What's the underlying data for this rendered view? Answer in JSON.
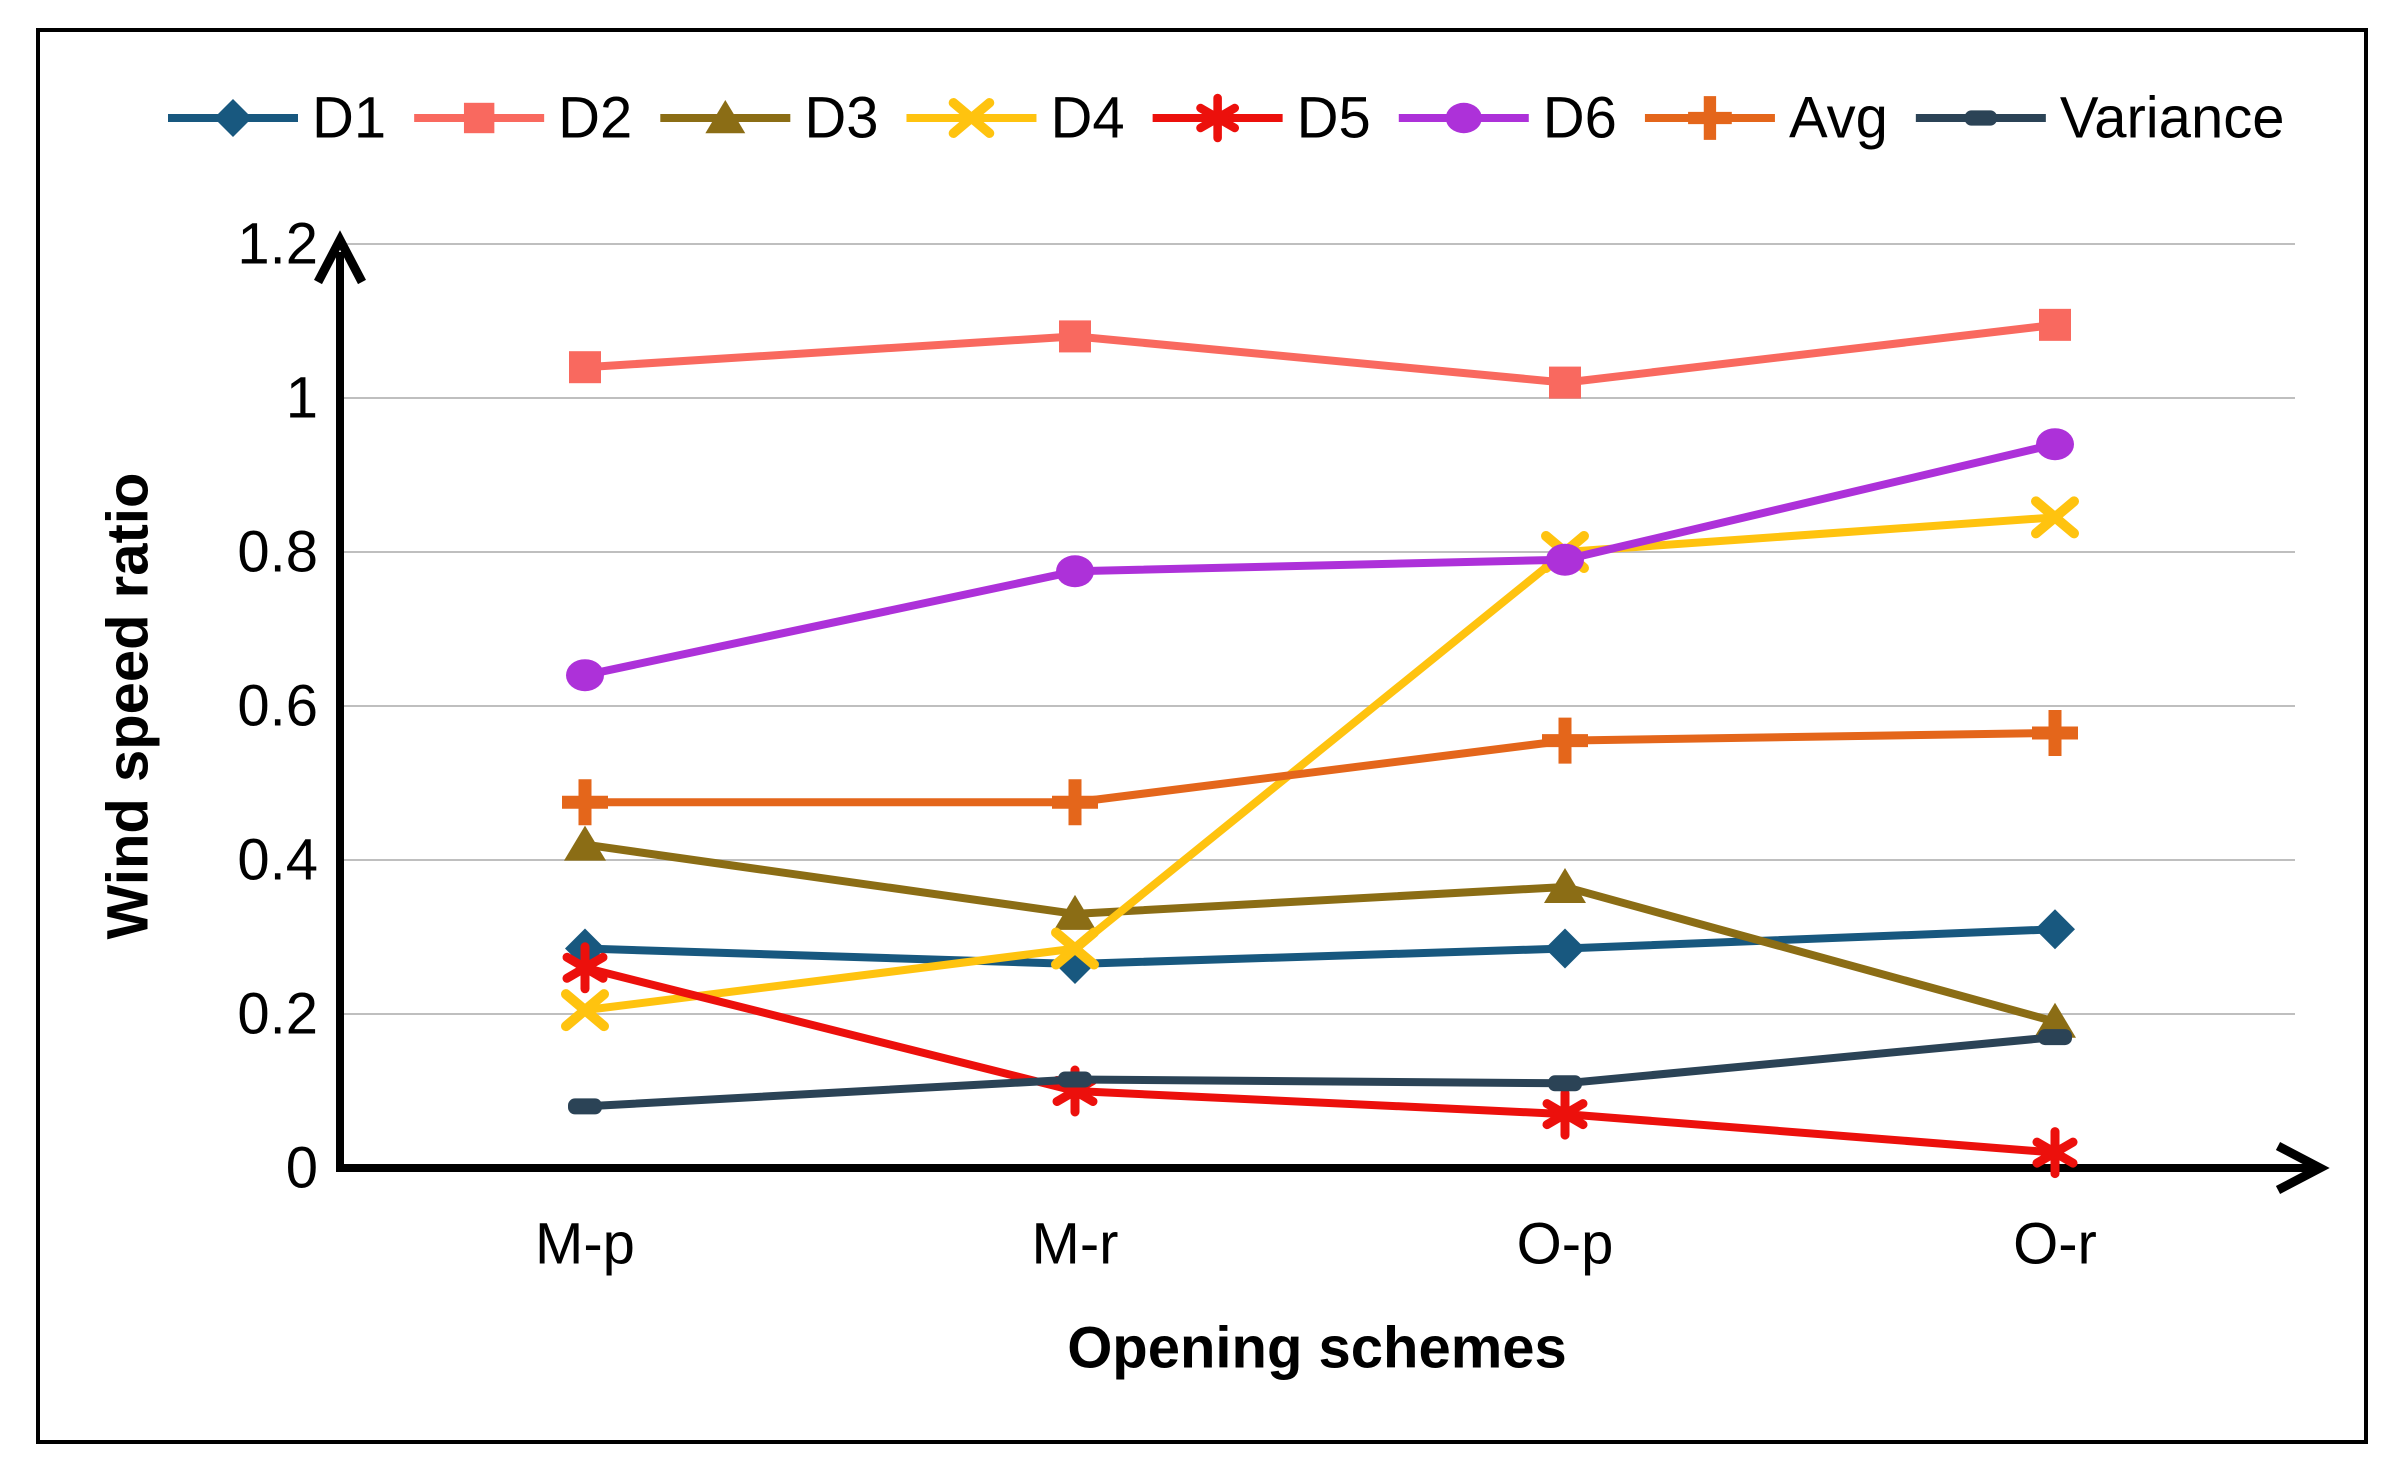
{
  "figure": {
    "border_color": "#000000",
    "background_color": "#ffffff"
  },
  "chart_data": {
    "type": "line",
    "title": "",
    "xlabel": "Opening schemes",
    "ylabel": "Wind speed ratio",
    "categories": [
      "M-p",
      "M-r",
      "O-p",
      "O-r"
    ],
    "series": [
      {
        "name": "D1",
        "marker": "diamond",
        "color": "#18587F",
        "values": [
          0.285,
          0.265,
          0.285,
          0.31
        ]
      },
      {
        "name": "D2",
        "marker": "square",
        "color": "#F9695F",
        "values": [
          1.04,
          1.08,
          1.02,
          1.095
        ]
      },
      {
        "name": "D3",
        "marker": "triangle",
        "color": "#8B6D15",
        "values": [
          0.42,
          0.33,
          0.365,
          0.19
        ]
      },
      {
        "name": "D4",
        "marker": "x",
        "color": "#FFC30F",
        "values": [
          0.205,
          0.285,
          0.8,
          0.845
        ]
      },
      {
        "name": "D5",
        "marker": "asterisk",
        "color": "#EC100C",
        "values": [
          0.26,
          0.1,
          0.07,
          0.02
        ]
      },
      {
        "name": "D6",
        "marker": "circle",
        "color": "#AD31D9",
        "values": [
          0.64,
          0.775,
          0.79,
          0.94
        ]
      },
      {
        "name": "Avg",
        "marker": "plus",
        "color": "#E4661B",
        "values": [
          0.475,
          0.475,
          0.555,
          0.565
        ]
      },
      {
        "name": "Variance",
        "marker": "dash",
        "color": "#2B4356",
        "values": [
          0.08,
          0.115,
          0.11,
          0.17
        ]
      }
    ],
    "ylim": [
      0,
      1.2
    ],
    "yticks": [
      {
        "value": 0,
        "label": "0"
      },
      {
        "value": 0.2,
        "label": "0.2"
      },
      {
        "value": 0.4,
        "label": "0.4"
      },
      {
        "value": 0.6,
        "label": "0.6"
      },
      {
        "value": 0.8,
        "label": "0.8"
      },
      {
        "value": 1,
        "label": "1"
      },
      {
        "value": 1.2,
        "label": "1.2"
      }
    ],
    "grid": true,
    "gridline_color": "#BFBFBF",
    "axis_color": "#000000",
    "legend_position": "top"
  }
}
